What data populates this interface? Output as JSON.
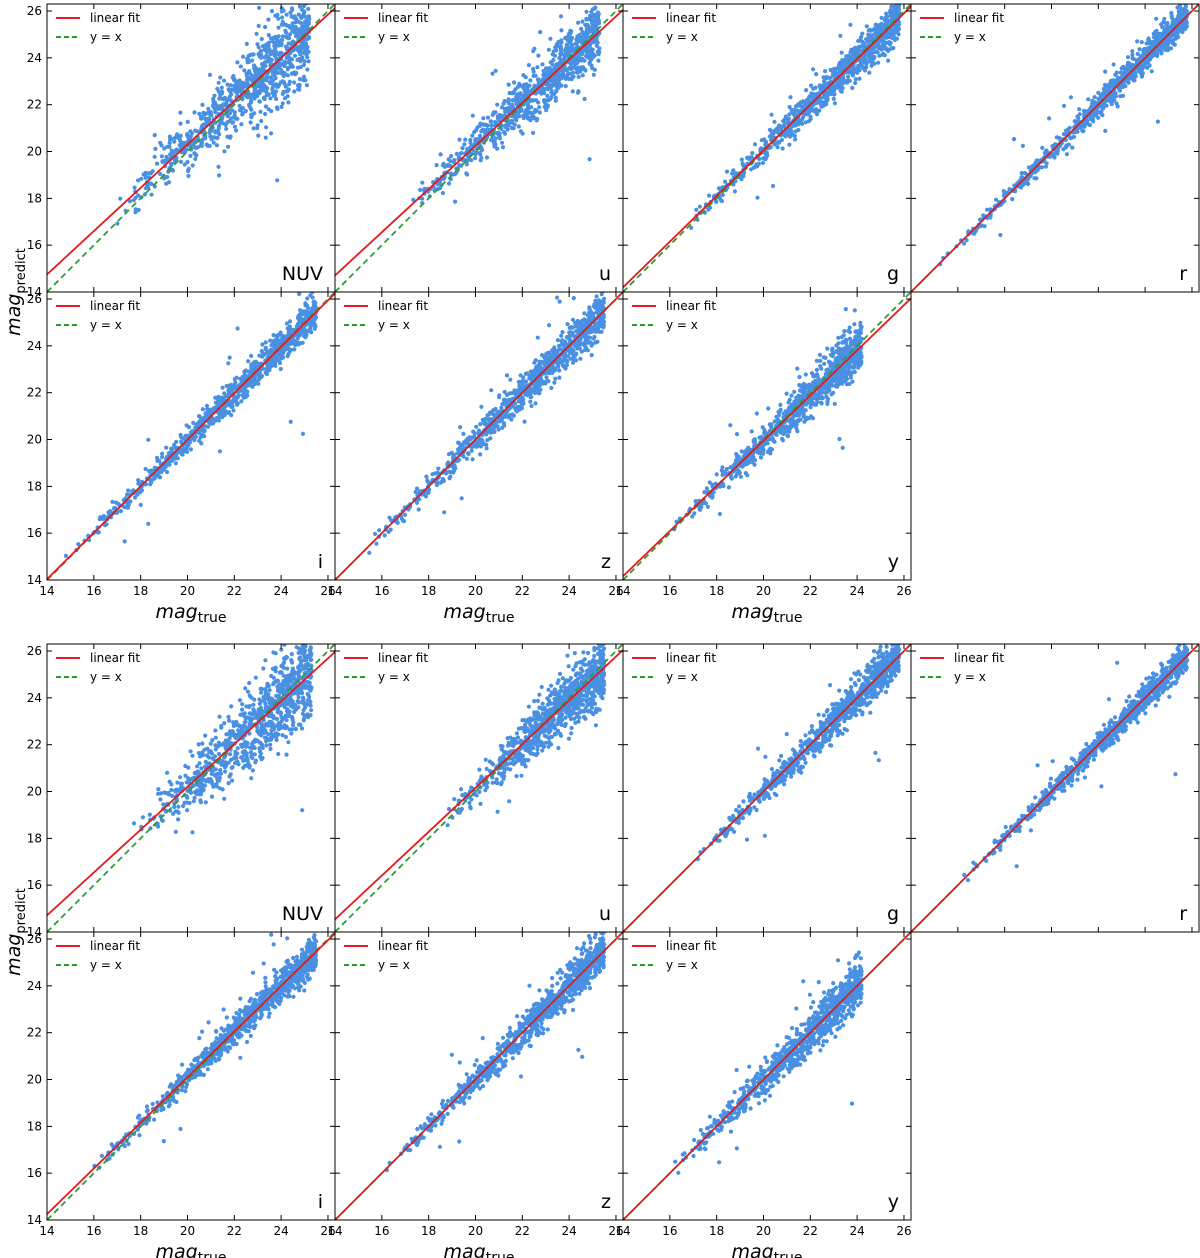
{
  "figure": {
    "blocks": [
      {
        "ylabel": {
          "main": "mag",
          "sub": "predict"
        },
        "xlabel": {
          "main": "mag",
          "sub": "true"
        },
        "panels": [
          {
            "band": "NUV",
            "fit": [
              0.925,
              1.8
            ]
          },
          {
            "band": "u",
            "fit": [
              0.922,
              1.8
            ]
          },
          {
            "band": "g",
            "fit": [
              0.975,
              0.55
            ]
          },
          {
            "band": "r",
            "fit": [
              1.0,
              0.0
            ]
          },
          {
            "band": "i",
            "fit": [
              0.992,
              0.15
            ]
          },
          {
            "band": "z",
            "fit": [
              1.0,
              0.0
            ]
          },
          {
            "band": "y",
            "fit": [
              0.965,
              0.65
            ]
          }
        ]
      },
      {
        "ylabel": {
          "main": "mag",
          "sub": "predict"
        },
        "xlabel": {
          "main": "mag",
          "sub": "true"
        },
        "panels": [
          {
            "band": "NUV",
            "fit": [
              0.915,
              1.9
            ]
          },
          {
            "band": "u",
            "fit": [
              0.935,
              1.45
            ]
          },
          {
            "band": "g",
            "fit": [
              1.0,
              0.0
            ]
          },
          {
            "band": "r",
            "fit": [
              1.0,
              0.0
            ]
          },
          {
            "band": "i",
            "fit": [
              0.975,
              0.6
            ]
          },
          {
            "band": "z",
            "fit": [
              1.0,
              0.0
            ]
          },
          {
            "band": "y",
            "fit": [
              1.0,
              0.0
            ]
          }
        ]
      }
    ]
  },
  "legend": {
    "fit_label": "linear fit",
    "identity_label": "y = x"
  },
  "colors": {
    "points": "#4a90e2",
    "fit": "#e41a1c",
    "identity": "#2ca02c",
    "axes": "#000000"
  },
  "chart_data": {
    "type": "scatter",
    "xlim": [
      14,
      26.3
    ],
    "ylim": [
      14,
      26.3
    ],
    "xticks": [
      14,
      16,
      18,
      20,
      22,
      24,
      26
    ],
    "yticks": [
      14,
      16,
      18,
      20,
      22,
      24,
      26
    ],
    "series": [
      {
        "name": "linear fit"
      },
      {
        "name": "y = x"
      }
    ],
    "panels": [
      {
        "block": 1,
        "band": "NUV",
        "x_range": [
          16.5,
          25.2
        ],
        "spread": 0.75,
        "fit": [
          0.925,
          1.8
        ]
      },
      {
        "block": 1,
        "band": "u",
        "x_range": [
          17.0,
          25.3
        ],
        "spread": 0.55,
        "fit": [
          0.922,
          1.8
        ]
      },
      {
        "block": 1,
        "band": "g",
        "x_range": [
          16.5,
          25.8
        ],
        "spread": 0.35,
        "fit": [
          0.975,
          0.55
        ]
      },
      {
        "block": 1,
        "band": "r",
        "x_range": [
          15.0,
          25.8
        ],
        "spread": 0.25,
        "fit": [
          1.0,
          0.0
        ]
      },
      {
        "block": 1,
        "band": "i",
        "x_range": [
          14.5,
          25.5
        ],
        "spread": 0.3,
        "fit": [
          0.992,
          0.15
        ]
      },
      {
        "block": 1,
        "band": "z",
        "x_range": [
          15.0,
          25.5
        ],
        "spread": 0.35,
        "fit": [
          1.0,
          0.0
        ]
      },
      {
        "block": 1,
        "band": "y",
        "x_range": [
          16.0,
          24.2
        ],
        "spread": 0.4,
        "fit": [
          0.965,
          0.65
        ]
      },
      {
        "block": 2,
        "band": "NUV",
        "x_range": [
          17.5,
          25.3
        ],
        "spread": 0.8,
        "fit": [
          0.915,
          1.9
        ]
      },
      {
        "block": 2,
        "band": "u",
        "x_range": [
          18.5,
          25.5
        ],
        "spread": 0.55,
        "fit": [
          0.935,
          1.45
        ]
      },
      {
        "block": 2,
        "band": "g",
        "x_range": [
          17.0,
          25.8
        ],
        "spread": 0.35,
        "fit": [
          1.0,
          0.0
        ]
      },
      {
        "block": 2,
        "band": "r",
        "x_range": [
          16.0,
          25.8
        ],
        "spread": 0.25,
        "fit": [
          1.0,
          0.0
        ]
      },
      {
        "block": 2,
        "band": "i",
        "x_range": [
          15.5,
          25.5
        ],
        "spread": 0.3,
        "fit": [
          0.975,
          0.6
        ]
      },
      {
        "block": 2,
        "band": "z",
        "x_range": [
          16.0,
          25.5
        ],
        "spread": 0.35,
        "fit": [
          1.0,
          0.0
        ]
      },
      {
        "block": 2,
        "band": "y",
        "x_range": [
          16.0,
          24.2
        ],
        "spread": 0.4,
        "fit": [
          1.0,
          0.0
        ]
      }
    ]
  }
}
